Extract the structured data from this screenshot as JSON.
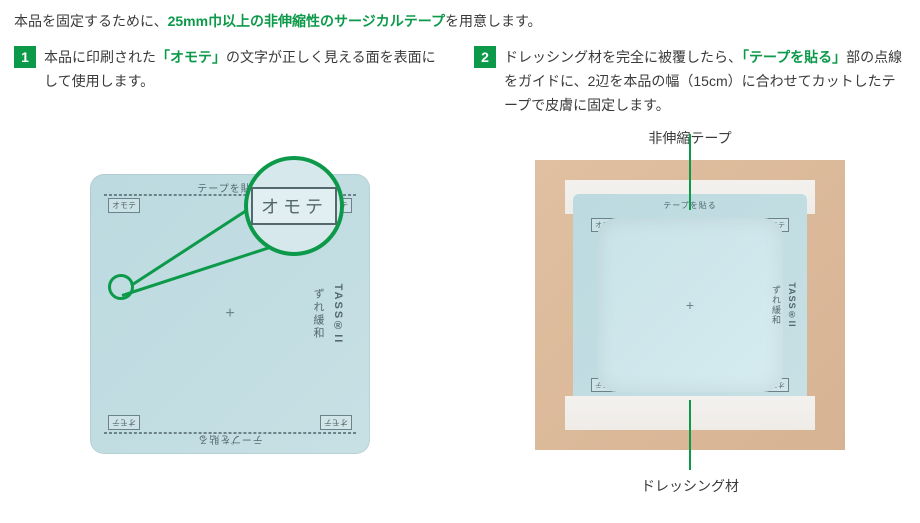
{
  "intro_pre": "本品を固定するために、",
  "intro_green": "25mm巾以上の非伸縮性のサージカルテープ",
  "intro_post": "を用意します。",
  "step1": {
    "num": "1",
    "text_pre": "本品に印刷された",
    "text_green": "「オモテ」",
    "text_post": "の文字が正しく見える面を表面にして使用します。",
    "mag_text": "オモテ",
    "edge_text": "テープを貼る",
    "corner_text": "オモテ",
    "side1": "TASS®II",
    "side2": "ずれ緩和",
    "colors": {
      "dressing": "#bcdae0",
      "accent": "#0c9a4a",
      "ink": "#54686d"
    }
  },
  "step2": {
    "num": "2",
    "text_pre": "ドレッシング材を完全に被覆したら、",
    "text_green": "「テープを貼る」",
    "text_post": "部の点線をガイドに、2辺を本品の幅（15cm）に合わせてカットしたテープで皮膚に固定します。",
    "label_top": "非伸縮テープ",
    "label_bottom": "ドレッシング材",
    "side1": "TASS®II",
    "side2": "ずれ緩和",
    "corner_text": "オモテ",
    "edge_text": "テープを貼る",
    "colors": {
      "skin": "#e0c0a1",
      "tape": "#f3f1ee",
      "dressing": "#bcdae0",
      "accent": "#0c9a4a"
    }
  }
}
